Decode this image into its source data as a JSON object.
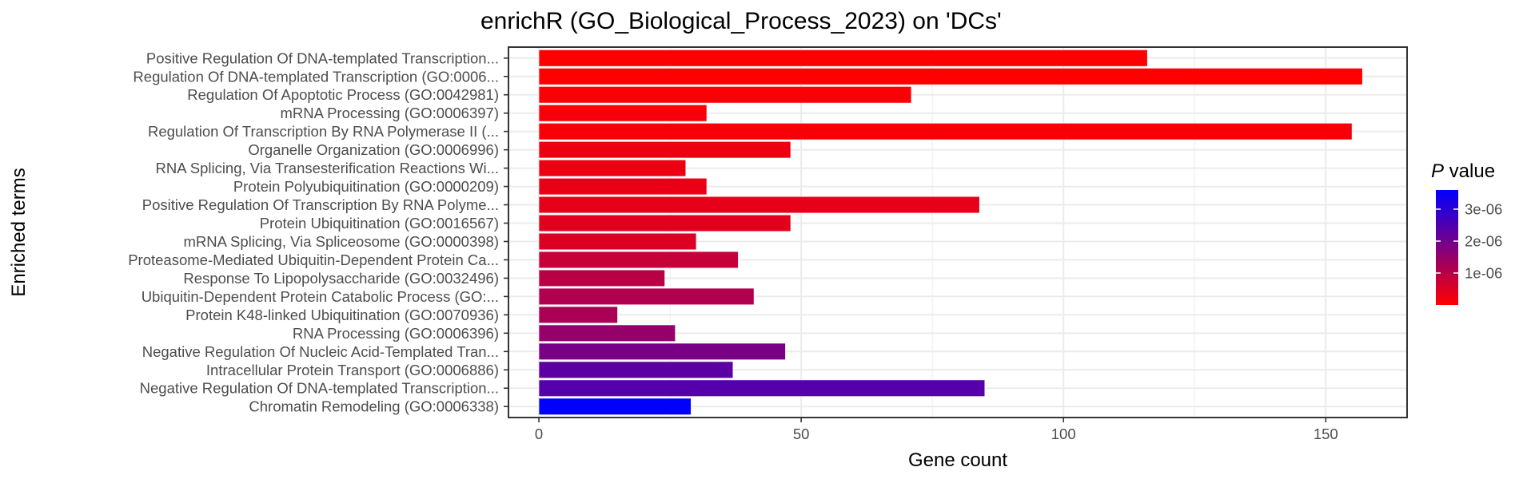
{
  "chart_data": {
    "type": "bar",
    "orientation": "horizontal",
    "title": "enrichR (GO_Biological_Process_2023) on 'DCs'",
    "xlabel": "Gene count",
    "ylabel": "Enriched terms",
    "xlim": [
      -5.8,
      165.5
    ],
    "x_ticks": [
      0,
      50,
      100,
      150
    ],
    "x_tick_labels": [
      "0",
      "50",
      "100",
      "150"
    ],
    "grid": true,
    "legend": {
      "title_italic": "P",
      "title_rest": " value",
      "placement": "right",
      "range": [
        0,
        3.6e-06
      ],
      "ticks": [
        1e-06,
        2e-06,
        3e-06
      ],
      "tick_labels": [
        "1e-06",
        "2e-06",
        "3e-06"
      ],
      "color_low": "#ff0000",
      "color_high": "#0000ff"
    },
    "categories": [
      "Positive Regulation Of DNA-templated Transcription...",
      "Regulation Of DNA-templated Transcription (GO:0006...",
      "Regulation Of Apoptotic Process (GO:0042981)",
      "mRNA Processing (GO:0006397)",
      "Regulation Of Transcription By RNA Polymerase II (...",
      "Organelle Organization (GO:0006996)",
      "RNA Splicing, Via Transesterification Reactions Wi...",
      "Protein Polyubiquitination (GO:0000209)",
      "Positive Regulation Of Transcription By RNA Polyme...",
      "Protein Ubiquitination (GO:0016567)",
      "mRNA Splicing, Via Spliceosome (GO:0000398)",
      "Proteasome-Mediated Ubiquitin-Dependent Protein Ca...",
      "Response To Lipopolysaccharide (GO:0032496)",
      "Ubiquitin-Dependent Protein Catabolic Process (GO:...",
      "Protein K48-linked Ubiquitination (GO:0070936)",
      "RNA Processing (GO:0006396)",
      "Negative Regulation Of Nucleic Acid-Templated Tran...",
      "Intracellular Protein Transport (GO:0006886)",
      "Negative Regulation Of DNA-templated Transcription...",
      "Chromatin Remodeling (GO:0006338)"
    ],
    "values": [
      116,
      157,
      71,
      32,
      155,
      48,
      28,
      32,
      84,
      48,
      30,
      38,
      24,
      41,
      15,
      26,
      47,
      37,
      85,
      29
    ],
    "p_values": [
      0.0,
      0.0,
      5e-08,
      1.2e-07,
      1e-07,
      2.2e-07,
      2.5e-07,
      3e-07,
      3.5e-07,
      4e-07,
      5e-07,
      8e-07,
      1e-06,
      1.1e-06,
      1.2e-06,
      1.5e-06,
      1.9e-06,
      2.3e-06,
      2.4e-06,
      3.6e-06
    ]
  }
}
